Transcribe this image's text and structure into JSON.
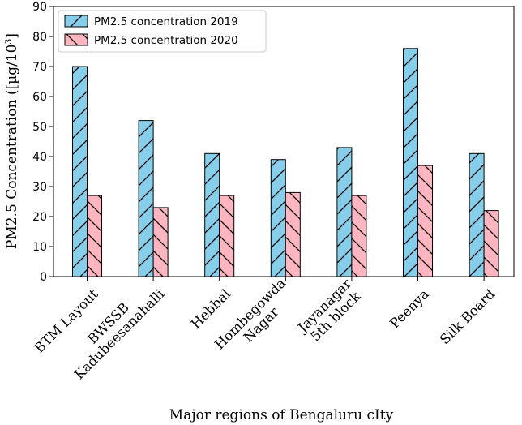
{
  "chart_data": {
    "type": "bar",
    "categories": [
      "BTM Layout",
      "BWSSB\nKadubeesanahalli",
      "Hebbal",
      "Hombegowda\nNagar",
      "Jayanagar\n5th block",
      "Peenya",
      "Silk Board"
    ],
    "series": [
      {
        "name": "PM2.5 concentration 2019",
        "values": [
          70,
          52,
          41,
          39,
          43,
          76,
          41
        ],
        "color": "#87ceeb",
        "hatch": "forward-slash"
      },
      {
        "name": "PM2.5 concentration 2020",
        "values": [
          27,
          23,
          27,
          28,
          27,
          37,
          22
        ],
        "color": "#ffb6c1",
        "hatch": "back-slash"
      }
    ],
    "title": "",
    "xlabel": "Major regions of Bengaluru cIty",
    "ylabel": "PM2.5 Concentration ([µg/10",
    "ylabel_superscript": "3",
    "ylabel_suffix": "]",
    "ylim": [
      0,
      90
    ],
    "yticks": [
      0,
      10,
      20,
      30,
      40,
      50,
      60,
      70,
      80,
      90
    ],
    "grid": false,
    "legend_position": "top-left"
  }
}
